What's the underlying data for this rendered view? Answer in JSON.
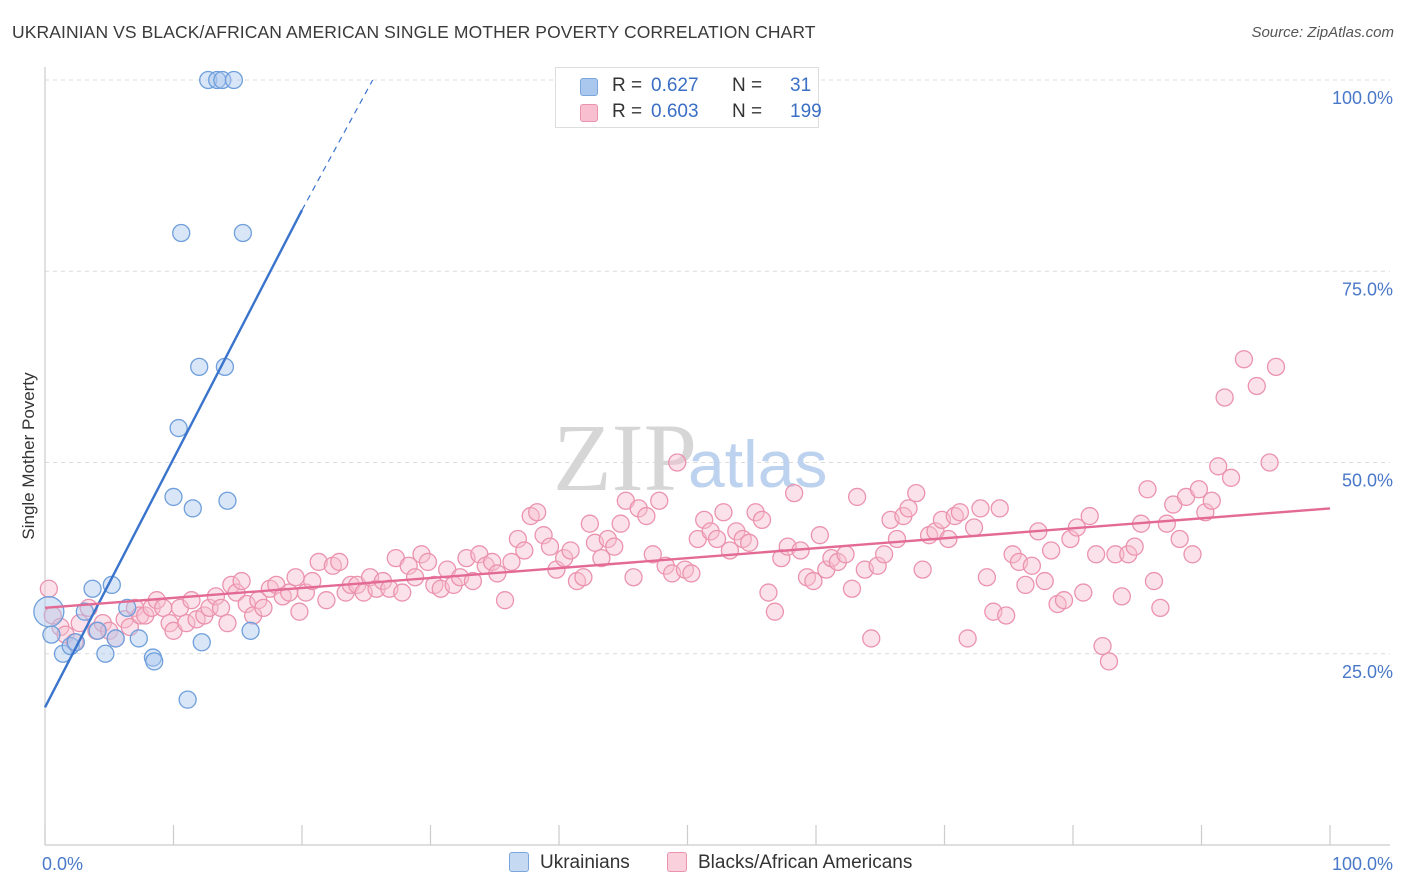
{
  "header": {
    "title": "UKRAINIAN VS BLACK/AFRICAN AMERICAN SINGLE MOTHER POVERTY CORRELATION CHART",
    "source": "Source: ZipAtlas.com"
  },
  "watermark": {
    "zip": "ZIP",
    "atlas": "atlas"
  },
  "legend": {
    "r_label": "R =",
    "n_label": "N =",
    "rows": [
      {
        "r": "0.627",
        "n": "31",
        "color": "#aac8ee",
        "border": "#7aa6dc"
      },
      {
        "r": "0.603",
        "n": "199",
        "color": "#f7bfd0",
        "border": "#eb93ae"
      }
    ]
  },
  "bottom_legend": [
    {
      "label": "Ukrainians",
      "color": "#c5d9f2",
      "border": "#7aa6dc"
    },
    {
      "label": "Blacks/African Americans",
      "color": "#fad0dd",
      "border": "#eb93ae"
    }
  ],
  "colors": {
    "blue_fill": "#aac8ee",
    "blue_stroke": "#6f9fdc",
    "blue_line": "#3a74cc",
    "pink_fill": "#f7bfd0",
    "pink_stroke": "#eb93ae",
    "pink_line": "#e36a95",
    "grid": "#dcdcdc",
    "axis": "#cccccc"
  },
  "chart_data": {
    "type": "scatter",
    "title": "UKRAINIAN VS BLACK/AFRICAN AMERICAN SINGLE MOTHER POVERTY CORRELATION CHART",
    "xlabel": "",
    "ylabel": "Single Mother Poverty",
    "xlim": [
      0,
      100
    ],
    "ylim": [
      0,
      100
    ],
    "x_ticks": [
      0,
      100
    ],
    "x_tick_labels": [
      "0.0%",
      "100.0%"
    ],
    "y_ticks": [
      25,
      50,
      75,
      100
    ],
    "y_tick_labels": [
      "25.0%",
      "50.0%",
      "75.0%",
      "100.0%"
    ],
    "grid": true,
    "legend_position": "top-center",
    "series": [
      {
        "name": "Ukrainians",
        "r": 0.627,
        "n": 31,
        "trend": {
          "x0": 0,
          "y0": 18,
          "x1": 20,
          "y1": 83,
          "dashed_to_x": 25.5,
          "dashed_to_y": 100
        },
        "points": [
          [
            0.3,
            30.5,
            "large"
          ],
          [
            0.5,
            27.5
          ],
          [
            1.4,
            25
          ],
          [
            2.0,
            26
          ],
          [
            2.4,
            26.5
          ],
          [
            3.1,
            30.5
          ],
          [
            3.7,
            33.5
          ],
          [
            4.1,
            28
          ],
          [
            4.7,
            25
          ],
          [
            5.2,
            34
          ],
          [
            5.5,
            27
          ],
          [
            6.4,
            31
          ],
          [
            7.3,
            27
          ],
          [
            8.4,
            24.5
          ],
          [
            8.5,
            24
          ],
          [
            10.0,
            45.5
          ],
          [
            10.4,
            54.5
          ],
          [
            10.6,
            80
          ],
          [
            11.1,
            19
          ],
          [
            11.5,
            44
          ],
          [
            12.0,
            62.5
          ],
          [
            12.2,
            26.5
          ],
          [
            12.7,
            100
          ],
          [
            13.4,
            100
          ],
          [
            13.8,
            100
          ],
          [
            14.0,
            62.5
          ],
          [
            14.2,
            45
          ],
          [
            14.7,
            100
          ],
          [
            15.4,
            80
          ],
          [
            16.0,
            28
          ]
        ]
      },
      {
        "name": "Blacks/African Americans",
        "r": 0.603,
        "n": 199,
        "trend": {
          "x0": 0,
          "y0": 31,
          "x1": 100,
          "y1": 44
        },
        "points": [
          [
            0.3,
            33.5
          ],
          [
            0.6,
            30
          ],
          [
            1.2,
            28.5
          ],
          [
            1.6,
            27.5
          ],
          [
            2.3,
            26.5
          ],
          [
            2.7,
            29
          ],
          [
            3.4,
            31
          ],
          [
            4.0,
            28
          ],
          [
            4.5,
            29
          ],
          [
            5.0,
            28
          ],
          [
            5.5,
            27
          ],
          [
            6.2,
            29.5
          ],
          [
            6.6,
            28.5
          ],
          [
            7.0,
            31
          ],
          [
            7.4,
            30
          ],
          [
            7.8,
            30
          ],
          [
            8.3,
            31
          ],
          [
            8.7,
            32
          ],
          [
            9.2,
            31
          ],
          [
            9.7,
            29
          ],
          [
            10.0,
            28
          ],
          [
            10.5,
            31
          ],
          [
            11.0,
            29
          ],
          [
            11.4,
            32
          ],
          [
            11.8,
            29.5
          ],
          [
            12.4,
            30
          ],
          [
            12.8,
            31
          ],
          [
            13.3,
            32.5
          ],
          [
            13.7,
            31
          ],
          [
            14.2,
            29
          ],
          [
            14.5,
            34
          ],
          [
            14.9,
            33
          ],
          [
            15.3,
            34.5
          ],
          [
            15.7,
            31.5
          ],
          [
            16.2,
            30
          ],
          [
            16.6,
            32
          ],
          [
            17.0,
            31
          ],
          [
            17.5,
            33.5
          ],
          [
            18.0,
            34
          ],
          [
            18.5,
            32.5
          ],
          [
            19.0,
            33
          ],
          [
            19.5,
            35
          ],
          [
            19.8,
            30.5
          ],
          [
            20.3,
            33
          ],
          [
            20.8,
            34.5
          ],
          [
            21.3,
            37
          ],
          [
            21.9,
            32
          ],
          [
            22.4,
            36.5
          ],
          [
            22.9,
            37
          ],
          [
            23.4,
            33
          ],
          [
            23.8,
            34
          ],
          [
            24.3,
            34
          ],
          [
            24.8,
            33
          ],
          [
            25.3,
            35
          ],
          [
            25.8,
            33.5
          ],
          [
            26.3,
            34.5
          ],
          [
            26.8,
            33.5
          ],
          [
            27.3,
            37.5
          ],
          [
            27.8,
            33
          ],
          [
            28.3,
            36.5
          ],
          [
            28.8,
            35
          ],
          [
            29.3,
            38
          ],
          [
            29.8,
            37
          ],
          [
            30.3,
            34
          ],
          [
            30.8,
            33.5
          ],
          [
            31.3,
            36
          ],
          [
            31.8,
            34
          ],
          [
            32.3,
            35
          ],
          [
            32.8,
            37.5
          ],
          [
            33.3,
            34.5
          ],
          [
            33.8,
            38
          ],
          [
            34.3,
            36.5
          ],
          [
            34.8,
            37
          ],
          [
            35.2,
            35.5
          ],
          [
            35.8,
            32
          ],
          [
            36.3,
            37
          ],
          [
            36.8,
            40
          ],
          [
            37.3,
            38.5
          ],
          [
            37.8,
            43
          ],
          [
            38.3,
            43.5
          ],
          [
            38.8,
            40.5
          ],
          [
            39.3,
            39
          ],
          [
            39.8,
            36
          ],
          [
            40.4,
            37.5
          ],
          [
            40.9,
            38.5
          ],
          [
            41.4,
            34.5
          ],
          [
            41.9,
            35
          ],
          [
            42.4,
            42
          ],
          [
            42.8,
            39.5
          ],
          [
            43.3,
            37.5
          ],
          [
            43.8,
            40
          ],
          [
            44.3,
            39
          ],
          [
            44.8,
            42
          ],
          [
            45.2,
            45
          ],
          [
            45.8,
            35
          ],
          [
            46.2,
            44
          ],
          [
            46.8,
            43
          ],
          [
            47.3,
            38
          ],
          [
            47.8,
            45
          ],
          [
            48.3,
            36.5
          ],
          [
            48.8,
            35.5
          ],
          [
            49.2,
            50
          ],
          [
            49.8,
            36
          ],
          [
            50.3,
            35.5
          ],
          [
            50.8,
            40
          ],
          [
            51.3,
            42.5
          ],
          [
            51.8,
            41
          ],
          [
            52.3,
            40
          ],
          [
            52.8,
            43.5
          ],
          [
            53.3,
            38.5
          ],
          [
            53.8,
            41
          ],
          [
            54.3,
            40
          ],
          [
            54.8,
            39.5
          ],
          [
            55.3,
            43.5
          ],
          [
            55.8,
            42.5
          ],
          [
            56.3,
            33
          ],
          [
            56.8,
            30.5
          ],
          [
            57.3,
            37.5
          ],
          [
            57.8,
            39
          ],
          [
            58.3,
            46
          ],
          [
            58.8,
            38.5
          ],
          [
            59.3,
            35
          ],
          [
            59.8,
            34.5
          ],
          [
            60.3,
            40.5
          ],
          [
            60.8,
            36
          ],
          [
            61.2,
            37.5
          ],
          [
            61.7,
            37
          ],
          [
            62.3,
            38
          ],
          [
            62.8,
            33.5
          ],
          [
            63.2,
            45.5
          ],
          [
            63.8,
            36
          ],
          [
            64.3,
            27
          ],
          [
            64.8,
            36.5
          ],
          [
            65.3,
            38
          ],
          [
            65.8,
            42.5
          ],
          [
            66.3,
            40
          ],
          [
            66.8,
            43
          ],
          [
            67.2,
            44
          ],
          [
            67.8,
            46
          ],
          [
            68.3,
            36
          ],
          [
            68.8,
            40.5
          ],
          [
            69.3,
            41
          ],
          [
            69.8,
            42.5
          ],
          [
            70.3,
            40
          ],
          [
            70.8,
            43
          ],
          [
            71.2,
            43.5
          ],
          [
            71.8,
            27
          ],
          [
            72.3,
            41.5
          ],
          [
            72.8,
            44
          ],
          [
            73.3,
            35
          ],
          [
            73.8,
            30.5
          ],
          [
            74.3,
            44
          ],
          [
            74.8,
            30
          ],
          [
            75.3,
            38
          ],
          [
            75.8,
            37
          ],
          [
            76.3,
            34
          ],
          [
            76.8,
            36.5
          ],
          [
            77.3,
            41
          ],
          [
            77.8,
            34.5
          ],
          [
            78.3,
            38.5
          ],
          [
            78.8,
            31.5
          ],
          [
            79.3,
            32
          ],
          [
            79.8,
            40
          ],
          [
            80.3,
            41.5
          ],
          [
            80.8,
            33
          ],
          [
            81.3,
            43
          ],
          [
            81.8,
            38
          ],
          [
            82.3,
            26
          ],
          [
            82.8,
            24
          ],
          [
            83.3,
            38
          ],
          [
            83.8,
            32.5
          ],
          [
            84.3,
            38
          ],
          [
            84.8,
            39
          ],
          [
            85.3,
            42
          ],
          [
            85.8,
            46.5
          ],
          [
            86.3,
            34.5
          ],
          [
            86.8,
            31
          ],
          [
            87.3,
            42
          ],
          [
            87.8,
            44.5
          ],
          [
            88.3,
            40
          ],
          [
            88.8,
            45.5
          ],
          [
            89.3,
            38
          ],
          [
            89.8,
            46.5
          ],
          [
            90.3,
            43.5
          ],
          [
            90.8,
            45
          ],
          [
            91.3,
            49.5
          ],
          [
            91.8,
            58.5
          ],
          [
            92.3,
            48
          ],
          [
            93.3,
            63.5
          ],
          [
            94.3,
            60
          ],
          [
            95.3,
            50
          ],
          [
            95.8,
            62.5
          ]
        ]
      }
    ]
  }
}
